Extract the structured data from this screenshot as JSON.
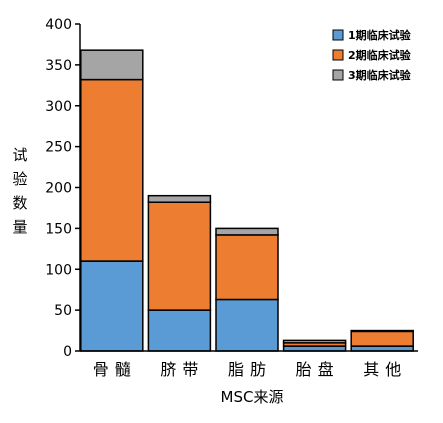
{
  "chart_data": {
    "type": "bar",
    "stacked": true,
    "categories": [
      "骨髓",
      "脐带",
      "脂肪",
      "胎盘",
      "其他"
    ],
    "series": [
      {
        "name": "1期临床试验",
        "color": "#5B9BD5",
        "values": [
          110,
          50,
          63,
          6,
          6
        ]
      },
      {
        "name": "2期临床试验",
        "color": "#ED7D31",
        "values": [
          222,
          132,
          79,
          4,
          18
        ]
      },
      {
        "name": "3期临床试验",
        "color": "#A5A5A5",
        "values": [
          36,
          8,
          8,
          3,
          1
        ]
      }
    ],
    "ylim": [
      0,
      400
    ],
    "yticks": [
      0,
      50,
      100,
      150,
      200,
      250,
      300,
      350,
      400
    ],
    "ylabel": "试验数量",
    "xlabel": "MSC来源",
    "legend_position": "top-right",
    "grid": false
  }
}
